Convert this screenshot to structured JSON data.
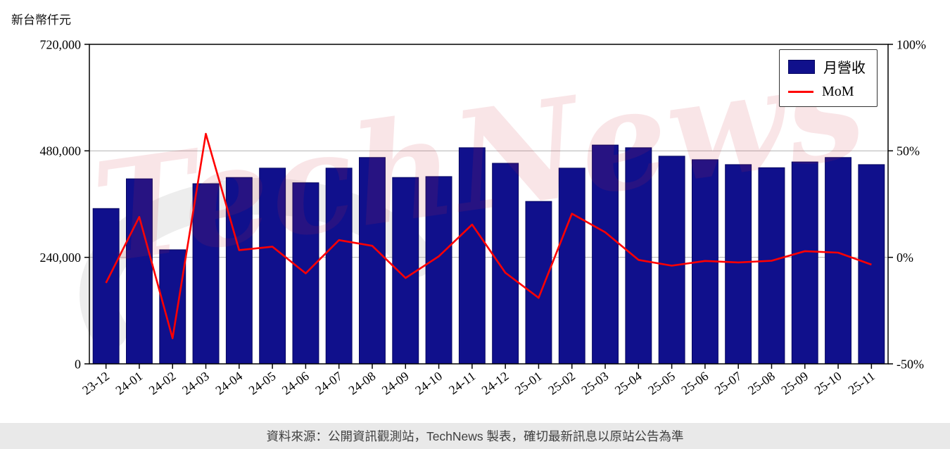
{
  "page": {
    "watermark": "TechNews",
    "footer": "資料來源：公開資訊觀測站，TechNews 製表，確切最新訊息以原站公告為準"
  },
  "chart_data": {
    "type": "bar",
    "title": "",
    "categories": [
      "23-12",
      "24-01",
      "24-02",
      "24-03",
      "24-04",
      "24-05",
      "24-06",
      "24-07",
      "24-08",
      "24-09",
      "24-10",
      "24-11",
      "24-12",
      "25-01",
      "25-02",
      "25-03",
      "25-04",
      "25-05",
      "25-06",
      "25-07",
      "25-08",
      "25-09",
      "25-10",
      "25-11"
    ],
    "series": [
      {
        "name": "月營收",
        "type": "bar",
        "axis": "left",
        "color": "#10108c",
        "values": [
          350000,
          417000,
          257000,
          406000,
          420000,
          441000,
          408000,
          441000,
          465000,
          420000,
          422000,
          487000,
          452000,
          366000,
          441000,
          493000,
          487000,
          468000,
          460000,
          449000,
          442000,
          455000,
          465000,
          449000
        ]
      },
      {
        "name": "MoM",
        "type": "line",
        "axis": "right",
        "color": "#ff0000",
        "values": [
          -12,
          19,
          -38,
          58,
          3.4,
          5,
          -7.5,
          8.1,
          5.4,
          -9.7,
          0.5,
          15.4,
          -7.2,
          -19,
          20.5,
          11.8,
          -1.2,
          -3.9,
          -1.7,
          -2.4,
          -1.6,
          2.9,
          2.2,
          -3.4
        ]
      }
    ],
    "left_axis": {
      "title": "新台幣仟元",
      "range": [
        0,
        720000
      ],
      "ticks": [
        0,
        240000,
        480000,
        720000
      ],
      "tick_labels": [
        "0",
        "240,000",
        "480,000",
        "720,000"
      ]
    },
    "right_axis": {
      "range": [
        -50,
        100
      ],
      "ticks": [
        -50,
        0,
        50,
        100
      ],
      "tick_labels": [
        "-50%",
        "0%",
        "50%",
        "100%"
      ]
    },
    "legend": {
      "position": "top-right",
      "entries": [
        "月營收",
        "MoM"
      ]
    },
    "grid": true
  }
}
